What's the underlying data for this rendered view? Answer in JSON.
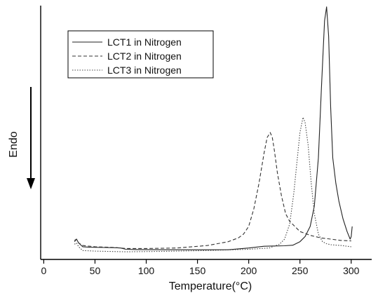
{
  "chart_data": {
    "type": "line",
    "title": "",
    "xlabel": "Temperature(°C)",
    "ylabel": "Endo",
    "xlim": [
      -3,
      320
    ],
    "ylim": [
      0,
      1
    ],
    "xticks": [
      0,
      50,
      100,
      150,
      200,
      250,
      300
    ],
    "y_tick_labels": false,
    "grid": false,
    "legend_position": "top-left",
    "endo_direction": "down",
    "series": [
      {
        "name": "LCT1 in Nitrogen",
        "style": "solid",
        "color": "#222222",
        "x": [
          30,
          32,
          34,
          38,
          45,
          60,
          70,
          75,
          80,
          90,
          120,
          150,
          180,
          200,
          215,
          225,
          235,
          243,
          250,
          255,
          260,
          264,
          268,
          271,
          274,
          276,
          278,
          280,
          282,
          285,
          288,
          292,
          296,
          299,
          300,
          301
        ],
        "y": [
          0.07,
          0.08,
          0.065,
          0.05,
          0.048,
          0.047,
          0.046,
          0.045,
          0.04,
          0.039,
          0.038,
          0.038,
          0.038,
          0.045,
          0.052,
          0.053,
          0.054,
          0.056,
          0.07,
          0.09,
          0.13,
          0.21,
          0.4,
          0.68,
          0.94,
          0.995,
          0.88,
          0.6,
          0.4,
          0.3,
          0.23,
          0.16,
          0.11,
          0.08,
          0.09,
          0.13
        ]
      },
      {
        "name": "LCT2 in Nitrogen",
        "style": "dashed",
        "color": "#333333",
        "x": [
          30,
          32,
          34,
          38,
          50,
          70,
          80,
          100,
          130,
          160,
          180,
          190,
          195,
          200,
          205,
          210,
          215,
          218,
          221,
          223,
          225,
          228,
          232,
          236,
          240,
          245,
          250,
          260,
          270,
          280,
          290,
          300
        ],
        "y": [
          0.075,
          0.08,
          0.065,
          0.055,
          0.05,
          0.047,
          0.043,
          0.043,
          0.045,
          0.055,
          0.07,
          0.085,
          0.1,
          0.13,
          0.2,
          0.3,
          0.42,
          0.48,
          0.5,
          0.48,
          0.43,
          0.34,
          0.25,
          0.18,
          0.15,
          0.13,
          0.11,
          0.095,
          0.085,
          0.08,
          0.075,
          0.073
        ]
      },
      {
        "name": "LCT3 in Nitrogen",
        "style": "dotted",
        "color": "#444444",
        "x": [
          30,
          32,
          34,
          38,
          50,
          80,
          120,
          160,
          200,
          220,
          230,
          235,
          240,
          244,
          247,
          250,
          253,
          255,
          258,
          261,
          264,
          268,
          272,
          276,
          280,
          290,
          300
        ],
        "y": [
          0.06,
          0.065,
          0.05,
          0.035,
          0.033,
          0.03,
          0.032,
          0.035,
          0.04,
          0.045,
          0.06,
          0.08,
          0.14,
          0.26,
          0.38,
          0.5,
          0.56,
          0.54,
          0.45,
          0.3,
          0.18,
          0.1,
          0.07,
          0.062,
          0.058,
          0.055,
          0.05
        ]
      }
    ]
  }
}
